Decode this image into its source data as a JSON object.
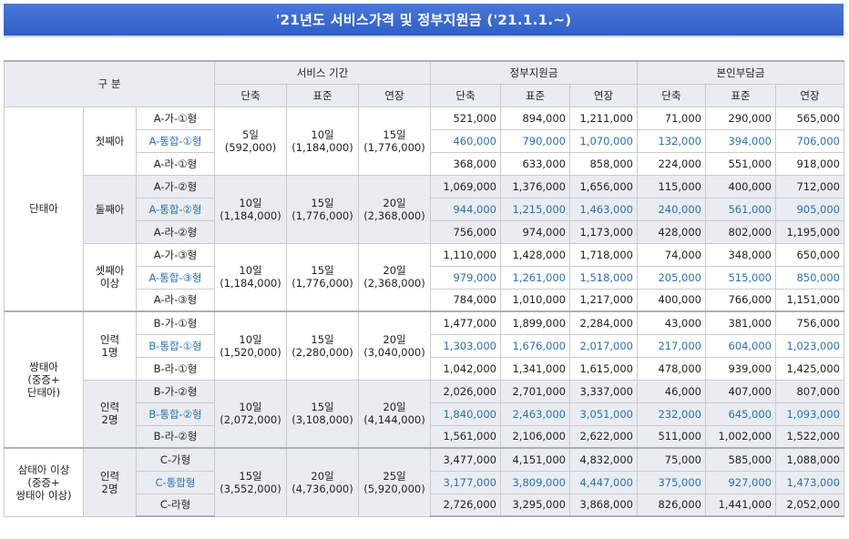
{
  "title": "'21년도  서비스가격 및 정부지원금 ('21.1.1.~)",
  "header": {
    "category": "구 분",
    "service_period": "서비스 기간",
    "gov_support": "정부지원금",
    "self_pay": "본인부담금",
    "short": "단축",
    "standard": "표준",
    "extended": "연장"
  },
  "groups": [
    {
      "label": "단태아",
      "shade": false,
      "subgroups": [
        {
          "label": "첫째아",
          "period": [
            "5일\n(592,000)",
            "10일\n(1,184,000)",
            "15일\n(1,776,000)"
          ],
          "rows": [
            {
              "type": "A-가-①형",
              "blue": false,
              "gov": [
                "521,000",
                "894,000",
                "1,211,000"
              ],
              "self": [
                "71,000",
                "290,000",
                "565,000"
              ]
            },
            {
              "type": "A-통합-①형",
              "blue": true,
              "gov": [
                "460,000",
                "790,000",
                "1,070,000"
              ],
              "self": [
                "132,000",
                "394,000",
                "706,000"
              ]
            },
            {
              "type": "A-라-①형",
              "blue": false,
              "gov": [
                "368,000",
                "633,000",
                "858,000"
              ],
              "self": [
                "224,000",
                "551,000",
                "918,000"
              ]
            }
          ]
        },
        {
          "label": "둘째아",
          "period": [
            "10일\n(1,184,000)",
            "15일\n(1,776,000)",
            "20일\n(2,368,000)"
          ],
          "rows": [
            {
              "type": "A-가-②형",
              "blue": false,
              "gov": [
                "1,069,000",
                "1,376,000",
                "1,656,000"
              ],
              "self": [
                "115,000",
                "400,000",
                "712,000"
              ]
            },
            {
              "type": "A-통합-②형",
              "blue": true,
              "gov": [
                "944,000",
                "1,215,000",
                "1,463,000"
              ],
              "self": [
                "240,000",
                "561,000",
                "905,000"
              ]
            },
            {
              "type": "A-라-②형",
              "blue": false,
              "gov": [
                "756,000",
                "974,000",
                "1,173,000"
              ],
              "self": [
                "428,000",
                "802,000",
                "1,195,000"
              ]
            }
          ]
        },
        {
          "label": "셋째아\n이상",
          "period": [
            "10일\n(1,184,000)",
            "15일\n(1,776,000)",
            "20일\n(2,368,000)"
          ],
          "rows": [
            {
              "type": "A-가-③형",
              "blue": false,
              "gov": [
                "1,110,000",
                "1,428,000",
                "1,718,000"
              ],
              "self": [
                "74,000",
                "348,000",
                "650,000"
              ]
            },
            {
              "type": "A-통합-③형",
              "blue": true,
              "gov": [
                "979,000",
                "1,261,000",
                "1,518,000"
              ],
              "self": [
                "205,000",
                "515,000",
                "850,000"
              ]
            },
            {
              "type": "A-라-③형",
              "blue": false,
              "gov": [
                "784,000",
                "1,010,000",
                "1,217,000"
              ],
              "self": [
                "400,000",
                "766,000",
                "1,151,000"
              ]
            }
          ]
        }
      ]
    },
    {
      "label": "쌍태아\n(중증+\n단태아)",
      "shade": true,
      "subgroups": [
        {
          "label": "인력\n1명",
          "period": [
            "10일\n(1,520,000)",
            "15일\n(2,280,000)",
            "20일\n(3,040,000)"
          ],
          "rows": [
            {
              "type": "B-가-①형",
              "blue": false,
              "gov": [
                "1,477,000",
                "1,899,000",
                "2,284,000"
              ],
              "self": [
                "43,000",
                "381,000",
                "756,000"
              ]
            },
            {
              "type": "B-통합-①형",
              "blue": true,
              "gov": [
                "1,303,000",
                "1,676,000",
                "2,017,000"
              ],
              "self": [
                "217,000",
                "604,000",
                "1,023,000"
              ]
            },
            {
              "type": "B-라-①형",
              "blue": false,
              "gov": [
                "1,042,000",
                "1,341,000",
                "1,615,000"
              ],
              "self": [
                "478,000",
                "939,000",
                "1,425,000"
              ]
            }
          ]
        },
        {
          "label": "인력\n2명",
          "period": [
            "10일\n(2,072,000)",
            "15일\n(3,108,000)",
            "20일\n(4,144,000)"
          ],
          "rows": [
            {
              "type": "B-가-②형",
              "blue": false,
              "gov": [
                "2,026,000",
                "2,701,000",
                "3,337,000"
              ],
              "self": [
                "46,000",
                "407,000",
                "807,000"
              ]
            },
            {
              "type": "B-통합-②형",
              "blue": true,
              "gov": [
                "1,840,000",
                "2,463,000",
                "3,051,000"
              ],
              "self": [
                "232,000",
                "645,000",
                "1,093,000"
              ]
            },
            {
              "type": "B-라-②형",
              "blue": false,
              "gov": [
                "1,561,000",
                "2,106,000",
                "2,622,000"
              ],
              "self": [
                "511,000",
                "1,002,000",
                "1,522,000"
              ]
            }
          ]
        }
      ]
    },
    {
      "label": "삼태아 이상\n(중증+\n쌍태아 이상)",
      "shade": true,
      "subgroups": [
        {
          "label": "인력\n2명",
          "period": [
            "15일\n(3,552,000)",
            "20일\n(4,736,000)",
            "25일\n(5,920,000)"
          ],
          "rows": [
            {
              "type": "C-가형",
              "blue": false,
              "gov": [
                "3,477,000",
                "4,151,000",
                "4,832,000"
              ],
              "self": [
                "75,000",
                "585,000",
                "1,088,000"
              ]
            },
            {
              "type": "C-통합형",
              "blue": true,
              "gov": [
                "3,177,000",
                "3,809,000",
                "4,447,000"
              ],
              "self": [
                "375,000",
                "927,000",
                "1,473,000"
              ]
            },
            {
              "type": "C-라형",
              "blue": false,
              "gov": [
                "2,726,000",
                "3,295,000",
                "3,868,000"
              ],
              "self": [
                "826,000",
                "1,441,000",
                "2,052,000"
              ]
            }
          ]
        }
      ]
    }
  ]
}
